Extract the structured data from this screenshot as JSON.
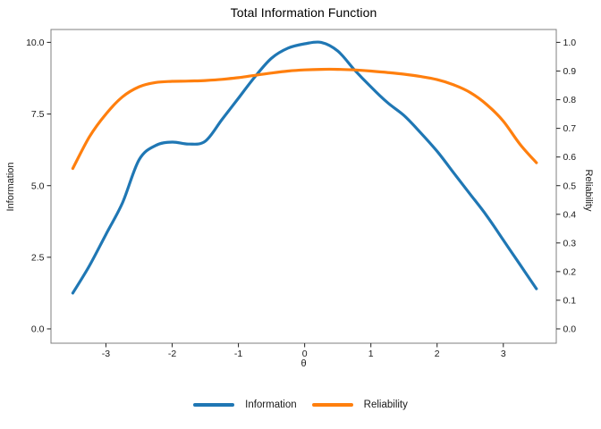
{
  "title": "Total Information Function",
  "colors": {
    "information": "#1f77b4",
    "reliability": "#ff7f0e",
    "panel_border": "#7f7f7f",
    "tick_mark": "#333333",
    "tick_text": "#1a1a1a",
    "background": "#ffffff"
  },
  "axes": {
    "x_label": "θ",
    "y_left_label": "Information",
    "y_right_label": "Reliability",
    "x_tick_labels": [
      "-3",
      "-2",
      "-1",
      "0",
      "1",
      "2",
      "3"
    ],
    "y_left_tick_labels": [
      "0.0",
      "2.5",
      "5.0",
      "7.5",
      "10.0"
    ],
    "y_right_tick_labels": [
      "0.0",
      "0.1",
      "0.2",
      "0.3",
      "0.4",
      "0.5",
      "0.6",
      "0.7",
      "0.8",
      "0.9",
      "1.0"
    ]
  },
  "legend": {
    "items": [
      {
        "label": "Information",
        "color": "#1f77b4"
      },
      {
        "label": "Reliability",
        "color": "#ff7f0e"
      }
    ]
  },
  "chart_data": {
    "type": "line",
    "title": "Total Information Function",
    "xlabel": "θ",
    "ylabel_left": "Information",
    "ylabel_right": "Reliability",
    "grid": false,
    "legend_position": "bottom",
    "x_range": [
      -3.5,
      3.5
    ],
    "x_display_range": [
      -3.83,
      3.8
    ],
    "y_left_range": [
      0,
      10
    ],
    "y_left_display_range": [
      -0.5,
      10.45
    ],
    "y_right_range": [
      0,
      1
    ],
    "x_tick_values": [
      -3,
      -2,
      -1,
      0,
      1,
      2,
      3
    ],
    "y_left_tick_values": [
      0,
      2.5,
      5,
      7.5,
      10
    ],
    "y_right_tick_values": [
      0,
      0.1,
      0.2,
      0.3,
      0.4,
      0.5,
      0.6,
      0.7,
      0.8,
      0.9,
      1.0
    ],
    "x": [
      -3.5,
      -3.25,
      -3.0,
      -2.75,
      -2.5,
      -2.25,
      -2.0,
      -1.75,
      -1.5,
      -1.25,
      -1.0,
      -0.75,
      -0.5,
      -0.25,
      0.0,
      0.25,
      0.5,
      0.75,
      1.0,
      1.25,
      1.5,
      1.75,
      2.0,
      2.25,
      2.5,
      2.75,
      3.0,
      3.25,
      3.5
    ],
    "series": [
      {
        "name": "Information",
        "axis": "left",
        "color": "#1f77b4",
        "values": [
          1.25,
          2.2,
          3.3,
          4.4,
          5.9,
          6.4,
          6.52,
          6.45,
          6.55,
          7.3,
          8.05,
          8.8,
          9.45,
          9.8,
          9.95,
          10.0,
          9.7,
          9.05,
          8.45,
          7.9,
          7.45,
          6.85,
          6.2,
          5.45,
          4.7,
          3.95,
          3.1,
          2.25,
          1.4
        ]
      },
      {
        "name": "Reliability",
        "axis": "right",
        "color": "#ff7f0e",
        "values": [
          0.56,
          0.67,
          0.75,
          0.81,
          0.845,
          0.86,
          0.864,
          0.865,
          0.867,
          0.871,
          0.877,
          0.885,
          0.893,
          0.9,
          0.904,
          0.906,
          0.906,
          0.904,
          0.9,
          0.895,
          0.889,
          0.881,
          0.87,
          0.852,
          0.825,
          0.783,
          0.725,
          0.645,
          0.58
        ]
      }
    ]
  }
}
